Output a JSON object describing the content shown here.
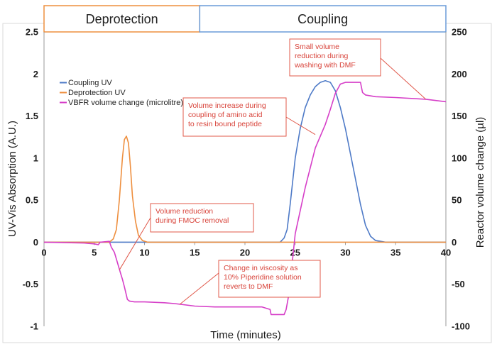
{
  "colors": {
    "coupling": "#4e7ac7",
    "deprotection": "#ee8f3f",
    "volume": "#d63fc8",
    "annotation": "#e0584a",
    "phase_deprotection_border": "#ee8f3f",
    "phase_coupling_border": "#6a9bd8"
  },
  "phases": [
    {
      "label": "Deprotection",
      "x_start": 0,
      "x_end": 15.5
    },
    {
      "label": "Coupling",
      "x_start": 15.5,
      "x_end": 40
    }
  ],
  "annotations": [
    {
      "lines": [
        "Small volume",
        "reduction during",
        "washing with DMF"
      ],
      "target": [
        38,
        170
      ]
    },
    {
      "lines": [
        "Volume increase during",
        "coupling of amino acid",
        "to resin bound peptide"
      ],
      "target": [
        27,
        128
      ]
    },
    {
      "lines": [
        "Volume reduction",
        "during FMOC removal"
      ],
      "target": [
        7.5,
        -33
      ]
    },
    {
      "lines": [
        "Change in viscosity as",
        "10% Piperidine solution",
        "reverts to DMF"
      ],
      "target": [
        13.5,
        -74
      ]
    }
  ],
  "chart_data": {
    "type": "line",
    "xlabel": "Time (minutes)",
    "ylabel": "UV-Vis Absorption (A.U.)",
    "y2label": "Reactor volume change (µl)",
    "xlim": [
      0,
      40
    ],
    "ylim": [
      -1,
      2.5
    ],
    "y2lim": [
      -100,
      250
    ],
    "xticks": [
      "0",
      "5",
      "10",
      "15",
      "20",
      "25",
      "30",
      "35",
      "40"
    ],
    "yticks": [
      "-1",
      "-0.5",
      "0",
      "0.5",
      "1",
      "1.5",
      "2",
      "2.5"
    ],
    "y2ticks": [
      "-100",
      "-50",
      "0",
      "50",
      "100",
      "150",
      "200",
      "250"
    ],
    "grid": false,
    "legend_position": "upper-left",
    "series": [
      {
        "name": "Coupling UV",
        "axis": "left",
        "x": [
          0,
          23.5,
          23.9,
          24.2,
          24.5,
          25,
          25.5,
          26,
          26.5,
          27,
          27.5,
          28,
          28.5,
          29,
          29.5,
          30,
          30.5,
          31,
          31.5,
          32,
          32.5,
          33,
          33.5,
          34,
          40
        ],
        "y": [
          0,
          0,
          0.05,
          0.15,
          0.45,
          1.0,
          1.35,
          1.6,
          1.75,
          1.85,
          1.9,
          1.92,
          1.9,
          1.8,
          1.6,
          1.35,
          1.05,
          0.75,
          0.45,
          0.2,
          0.07,
          0.02,
          0.01,
          0,
          0
        ]
      },
      {
        "name": "Deprotection UV",
        "axis": "left",
        "x": [
          0,
          6.5,
          6.9,
          7.2,
          7.5,
          7.8,
          8.0,
          8.2,
          8.4,
          8.6,
          8.8,
          9.1,
          9.4,
          9.8,
          10.3,
          40
        ],
        "y": [
          0,
          0,
          0.04,
          0.15,
          0.5,
          1.0,
          1.22,
          1.26,
          1.18,
          0.9,
          0.55,
          0.25,
          0.08,
          0.02,
          0,
          0
        ]
      },
      {
        "name": "VBFR volume change (microlitre)",
        "axis": "right",
        "x": [
          0,
          4,
          5,
          5.4,
          5.6,
          6.5,
          6.7,
          7,
          7.2,
          7.4,
          7.6,
          7.8,
          8,
          8.2,
          8.3,
          8.5,
          9,
          10,
          12,
          13,
          15,
          17,
          20,
          21.7,
          22.5,
          22.6,
          23.2,
          23.6,
          23.9,
          24.1,
          24.4,
          24.7,
          25,
          26,
          27,
          28,
          28.5,
          29,
          29.5,
          30,
          30.5,
          31.5,
          31.7,
          32,
          33,
          35,
          38,
          40
        ],
        "y": [
          0,
          -1,
          -2,
          -3,
          0,
          1,
          -6,
          -12,
          -20,
          -28,
          -36,
          -44,
          -53,
          -63,
          -68,
          -70,
          -71,
          -71,
          -72,
          -73,
          -76,
          -77,
          -77,
          -77,
          -80,
          -86,
          -86,
          -86,
          -86,
          -80,
          -60,
          -25,
          10,
          65,
          112,
          140,
          158,
          177,
          188,
          190,
          190,
          190,
          178,
          175,
          173,
          172,
          170,
          167
        ]
      }
    ]
  }
}
